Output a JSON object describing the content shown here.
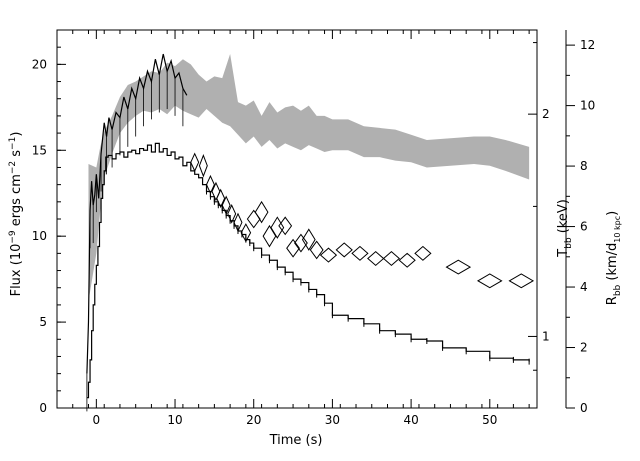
{
  "chart_data": {
    "type": "line",
    "title": "",
    "xlabel": "Time (s)",
    "ylabel": {
      "prefix": "Flux (10",
      "exp1": "−9",
      "mid1": " ergs cm",
      "exp2": "−2",
      "mid2": " s",
      "exp3": "−1",
      "suffix": ")"
    },
    "right_label_T": {
      "base": "T",
      "sub": "bb",
      "rest": " (keV)"
    },
    "right_label_R": {
      "base": "R",
      "sub": "bb",
      "mid": " (km/d",
      "sub2": "10 kpc",
      "end": ")"
    },
    "xlim": [
      -5,
      56
    ],
    "ylim": [
      0,
      22
    ],
    "xticks": [
      "0",
      "10",
      "20",
      "30",
      "40",
      "50"
    ],
    "yticks": [
      "0",
      "5",
      "10",
      "15",
      "20"
    ],
    "t_ticks": [
      "1",
      "2"
    ],
    "r_ticks": [
      "0",
      "2",
      "4",
      "6",
      "8",
      "10",
      "12"
    ],
    "grid": false,
    "series": [
      {
        "kind": "flux-histogram",
        "color": "#000000",
        "points": [
          [
            -1.2,
            0.6
          ],
          [
            -1.0,
            1.5
          ],
          [
            -0.8,
            2.8
          ],
          [
            -0.6,
            4.5
          ],
          [
            -0.4,
            6.0
          ],
          [
            -0.2,
            7.2
          ],
          [
            0.0,
            8.3
          ],
          [
            0.2,
            9.4
          ],
          [
            0.4,
            10.8
          ],
          [
            0.6,
            12.2
          ],
          [
            0.8,
            13.0
          ],
          [
            1.0,
            13.8
          ],
          [
            1.2,
            14.6
          ],
          [
            1.5,
            14.7
          ],
          [
            2.0,
            14.5
          ],
          [
            2.5,
            14.8
          ],
          [
            3.0,
            14.9
          ],
          [
            3.5,
            14.6
          ],
          [
            4.0,
            14.9
          ],
          [
            4.5,
            15.0
          ],
          [
            5.0,
            14.8
          ],
          [
            5.5,
            15.1
          ],
          [
            6.0,
            15.0
          ],
          [
            6.5,
            15.3
          ],
          [
            7.0,
            14.9
          ],
          [
            7.5,
            15.4
          ],
          [
            8.0,
            14.9
          ],
          [
            8.5,
            15.1
          ],
          [
            9.0,
            14.7
          ],
          [
            9.5,
            14.9
          ],
          [
            10.0,
            14.5
          ],
          [
            10.5,
            14.6
          ],
          [
            11.0,
            14.1
          ],
          [
            11.5,
            14.3
          ],
          [
            12.0,
            13.8
          ],
          [
            12.5,
            13.6
          ],
          [
            13.0,
            13.4
          ],
          [
            13.5,
            13.0
          ],
          [
            14.0,
            12.6
          ],
          [
            14.5,
            12.3
          ],
          [
            15.0,
            12.0
          ],
          [
            15.5,
            11.8
          ],
          [
            16.0,
            11.5
          ],
          [
            16.5,
            11.2
          ],
          [
            17.0,
            10.9
          ],
          [
            17.5,
            10.6
          ],
          [
            18.0,
            10.3
          ],
          [
            18.5,
            10.1
          ],
          [
            19.0,
            9.8
          ],
          [
            19.5,
            9.6
          ],
          [
            20.0,
            9.3
          ],
          [
            21.0,
            8.9
          ],
          [
            22.0,
            8.6
          ],
          [
            23.0,
            8.2
          ],
          [
            24.0,
            7.9
          ],
          [
            25.0,
            7.5
          ],
          [
            26.0,
            7.3
          ],
          [
            27.0,
            6.9
          ],
          [
            28.0,
            6.6
          ],
          [
            29.0,
            6.1
          ],
          [
            30.0,
            5.4
          ],
          [
            32.0,
            5.2
          ],
          [
            34.0,
            4.9
          ],
          [
            36.0,
            4.5
          ],
          [
            38.0,
            4.3
          ],
          [
            40.0,
            4.0
          ],
          [
            42.0,
            3.9
          ],
          [
            44.0,
            3.5
          ],
          [
            47.0,
            3.3
          ],
          [
            50.0,
            2.9
          ],
          [
            53.0,
            2.8
          ],
          [
            55.0,
            2.7
          ]
        ]
      },
      {
        "kind": "flux-upper-envelope",
        "color": "#000000",
        "points": [
          [
            -1.2,
            2.0
          ],
          [
            -1.0,
            5.0
          ],
          [
            -0.8,
            11.5
          ],
          [
            -0.6,
            13.2
          ],
          [
            -0.4,
            11.8
          ],
          [
            -0.2,
            12.4
          ],
          [
            0.0,
            13.6
          ],
          [
            0.3,
            12.2
          ],
          [
            0.6,
            14.8
          ],
          [
            1.0,
            16.6
          ],
          [
            1.3,
            15.8
          ],
          [
            1.6,
            16.9
          ],
          [
            2.0,
            16.2
          ],
          [
            2.5,
            17.2
          ],
          [
            3.0,
            16.9
          ],
          [
            3.5,
            18.1
          ],
          [
            4.0,
            17.4
          ],
          [
            4.5,
            18.6
          ],
          [
            5.0,
            18.0
          ],
          [
            5.5,
            19.2
          ],
          [
            6.0,
            18.6
          ],
          [
            6.5,
            19.6
          ],
          [
            7.0,
            19.0
          ],
          [
            7.5,
            20.3
          ],
          [
            8.0,
            19.4
          ],
          [
            8.5,
            20.6
          ],
          [
            9.0,
            19.6
          ],
          [
            9.5,
            20.2
          ],
          [
            10.0,
            19.2
          ],
          [
            10.5,
            19.5
          ],
          [
            11.0,
            18.6
          ],
          [
            11.5,
            18.2
          ]
        ]
      },
      {
        "kind": "temperature-band-upper",
        "color": "#b0b0b0",
        "points": [
          [
            -1.0,
            14.2
          ],
          [
            0.0,
            14.0
          ],
          [
            0.5,
            15.2
          ],
          [
            1.0,
            16.1
          ],
          [
            2.0,
            17.0
          ],
          [
            3.0,
            18.1
          ],
          [
            4.0,
            18.8
          ],
          [
            5.0,
            19.0
          ],
          [
            6.0,
            19.3
          ],
          [
            7.0,
            19.6
          ],
          [
            8.0,
            19.5
          ],
          [
            9.0,
            20.1
          ],
          [
            10.0,
            19.9
          ],
          [
            11.0,
            20.3
          ],
          [
            12.0,
            20.0
          ],
          [
            13.0,
            19.4
          ],
          [
            14.0,
            19.0
          ],
          [
            15.0,
            19.3
          ],
          [
            16.0,
            19.2
          ],
          [
            17.0,
            20.6
          ],
          [
            18.0,
            17.8
          ],
          [
            19.0,
            17.6
          ],
          [
            20.0,
            17.9
          ],
          [
            21.0,
            17.0
          ],
          [
            22.0,
            17.8
          ],
          [
            23.0,
            17.2
          ],
          [
            24.0,
            17.5
          ],
          [
            25.0,
            17.6
          ],
          [
            26.0,
            17.3
          ],
          [
            27.0,
            17.6
          ],
          [
            28.0,
            17.0
          ],
          [
            29.0,
            17.0
          ],
          [
            30.0,
            16.8
          ],
          [
            32.0,
            16.8
          ],
          [
            34.0,
            16.4
          ],
          [
            36.0,
            16.3
          ],
          [
            38.0,
            16.2
          ],
          [
            40.0,
            15.9
          ],
          [
            42.0,
            15.6
          ],
          [
            45.0,
            15.7
          ],
          [
            48.0,
            15.8
          ],
          [
            50.0,
            15.8
          ],
          [
            52.0,
            15.6
          ],
          [
            55.0,
            15.2
          ]
        ]
      },
      {
        "kind": "temperature-band-lower",
        "color": "#b0b0b0",
        "points": [
          [
            -1.0,
            6.2
          ],
          [
            0.0,
            9.0
          ],
          [
            0.5,
            11.5
          ],
          [
            1.0,
            13.4
          ],
          [
            2.0,
            14.8
          ],
          [
            3.0,
            16.0
          ],
          [
            4.0,
            16.6
          ],
          [
            5.0,
            17.0
          ],
          [
            6.0,
            17.3
          ],
          [
            7.0,
            17.2
          ],
          [
            8.0,
            17.4
          ],
          [
            9.0,
            17.1
          ],
          [
            10.0,
            17.6
          ],
          [
            11.0,
            17.3
          ],
          [
            12.0,
            17.1
          ],
          [
            13.0,
            16.9
          ],
          [
            14.0,
            17.4
          ],
          [
            15.0,
            17.0
          ],
          [
            16.0,
            16.6
          ],
          [
            17.0,
            16.4
          ],
          [
            18.0,
            15.9
          ],
          [
            19.0,
            15.4
          ],
          [
            20.0,
            15.8
          ],
          [
            21.0,
            15.2
          ],
          [
            22.0,
            15.6
          ],
          [
            23.0,
            15.1
          ],
          [
            24.0,
            15.4
          ],
          [
            25.0,
            15.2
          ],
          [
            26.0,
            15.0
          ],
          [
            27.0,
            15.3
          ],
          [
            28.0,
            15.1
          ],
          [
            29.0,
            14.9
          ],
          [
            30.0,
            15.0
          ],
          [
            32.0,
            15.0
          ],
          [
            34.0,
            14.6
          ],
          [
            36.0,
            14.6
          ],
          [
            38.0,
            14.4
          ],
          [
            40.0,
            14.3
          ],
          [
            42.0,
            14.0
          ],
          [
            45.0,
            14.1
          ],
          [
            48.0,
            14.2
          ],
          [
            50.0,
            14.1
          ],
          [
            52.0,
            13.8
          ],
          [
            55.0,
            13.3
          ]
        ]
      },
      {
        "kind": "radius-diamonds",
        "color": "#000000",
        "points": [
          [
            12.5,
            14.3,
            0.5,
            0.5
          ],
          [
            13.6,
            14.1,
            0.5,
            0.6
          ],
          [
            14.5,
            13.0,
            0.5,
            0.5
          ],
          [
            15.2,
            12.6,
            0.5,
            0.5
          ],
          [
            15.8,
            12.2,
            0.5,
            0.5
          ],
          [
            16.5,
            11.8,
            0.5,
            0.5
          ],
          [
            17.2,
            11.3,
            0.5,
            0.5
          ],
          [
            18.0,
            10.8,
            0.5,
            0.5
          ],
          [
            19.0,
            10.2,
            0.6,
            0.5
          ],
          [
            20.0,
            11.0,
            0.8,
            0.5
          ],
          [
            21.0,
            11.4,
            0.8,
            0.6
          ],
          [
            22.0,
            10.0,
            0.8,
            0.6
          ],
          [
            23.0,
            10.5,
            0.8,
            0.6
          ],
          [
            24.0,
            10.6,
            0.8,
            0.5
          ],
          [
            25.0,
            9.3,
            0.8,
            0.5
          ],
          [
            26.0,
            9.6,
            0.8,
            0.5
          ],
          [
            27.0,
            9.8,
            0.8,
            0.6
          ],
          [
            28.0,
            9.2,
            0.8,
            0.5
          ],
          [
            29.5,
            8.9,
            1.0,
            0.4
          ],
          [
            31.5,
            9.2,
            1.0,
            0.4
          ],
          [
            33.5,
            9.0,
            1.0,
            0.4
          ],
          [
            35.5,
            8.7,
            1.0,
            0.4
          ],
          [
            37.5,
            8.7,
            1.0,
            0.4
          ],
          [
            39.5,
            8.6,
            1.0,
            0.4
          ],
          [
            41.5,
            9.0,
            1.0,
            0.4
          ],
          [
            46.0,
            8.2,
            1.5,
            0.4
          ],
          [
            50.0,
            7.4,
            1.5,
            0.4
          ],
          [
            54.0,
            7.4,
            1.5,
            0.4
          ]
        ]
      }
    ]
  }
}
